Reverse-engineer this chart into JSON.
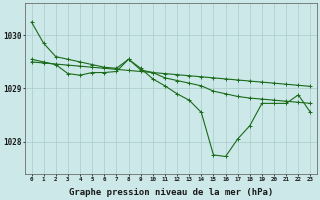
{
  "background_color": "#cce8e8",
  "grid_color": "#aacccc",
  "line_color": "#1a6b1a",
  "marker_color": "#1a6b1a",
  "xlabel": "Graphe pression niveau de la mer (hPa)",
  "xlabel_fontsize": 6.5,
  "ytick_values": [
    1028,
    1029,
    1030
  ],
  "ylim": [
    1027.4,
    1030.6
  ],
  "xlim": [
    -0.5,
    23.5
  ],
  "series1": [
    1030.25,
    1029.85,
    1029.6,
    1029.55,
    1029.5,
    1029.45,
    1029.4,
    1029.38,
    1029.55,
    1029.35,
    1029.3,
    1029.2,
    1029.15,
    1029.1,
    1029.05,
    1028.95,
    1028.9,
    1028.85,
    1028.82,
    1028.8,
    1028.78,
    1028.76,
    1028.74,
    1028.72
  ],
  "series2": [
    1029.5,
    1029.48,
    1029.46,
    1029.44,
    1029.42,
    1029.4,
    1029.38,
    1029.36,
    1029.34,
    1029.32,
    1029.3,
    1029.28,
    1029.26,
    1029.24,
    1029.22,
    1029.2,
    1029.18,
    1029.16,
    1029.14,
    1029.12,
    1029.1,
    1029.08,
    1029.06,
    1029.04
  ],
  "series3": [
    1029.55,
    1029.5,
    1029.45,
    1029.28,
    1029.25,
    1029.3,
    1029.3,
    1029.32,
    1029.55,
    1029.38,
    1029.18,
    1029.05,
    1028.9,
    1028.78,
    1028.55,
    1027.75,
    1027.72,
    1028.05,
    1028.3,
    1028.72,
    1028.72,
    1028.72,
    1028.88,
    1028.55
  ],
  "marker_size": 3,
  "lw": 0.8
}
